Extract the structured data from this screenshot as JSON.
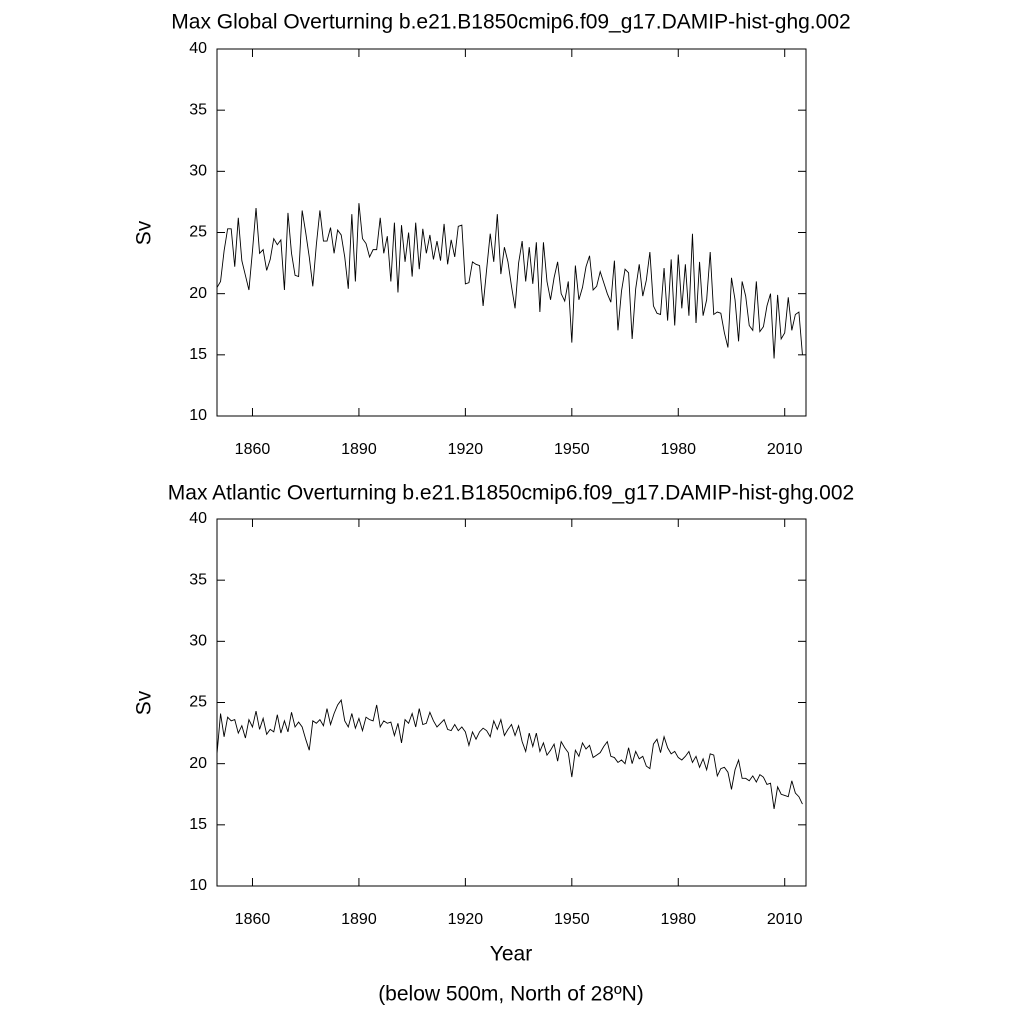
{
  "chart_data": [
    {
      "type": "line",
      "title": "Max Global Overturning b.e21.B1850cmip6.f09_g17.DAMIP-hist-ghg.002",
      "ylabel": "Sv",
      "color": "#000000",
      "xlim": [
        1850,
        2016
      ],
      "xticks": [
        1860,
        1890,
        1920,
        1950,
        1980,
        2010
      ],
      "ylim": [
        10,
        40
      ],
      "yticks": [
        10,
        15,
        20,
        25,
        30,
        35,
        40
      ],
      "x": [
        1850,
        1851,
        1852,
        1853,
        1854,
        1855,
        1856,
        1857,
        1858,
        1859,
        1860,
        1861,
        1862,
        1863,
        1864,
        1865,
        1866,
        1867,
        1868,
        1869,
        1870,
        1871,
        1872,
        1873,
        1874,
        1875,
        1876,
        1877,
        1878,
        1879,
        1880,
        1881,
        1882,
        1883,
        1884,
        1885,
        1886,
        1887,
        1888,
        1889,
        1890,
        1891,
        1892,
        1893,
        1894,
        1895,
        1896,
        1897,
        1898,
        1899,
        1900,
        1901,
        1902,
        1903,
        1904,
        1905,
        1906,
        1907,
        1908,
        1909,
        1910,
        1911,
        1912,
        1913,
        1914,
        1915,
        1916,
        1917,
        1918,
        1919,
        1920,
        1921,
        1922,
        1923,
        1924,
        1925,
        1926,
        1927,
        1928,
        1929,
        1930,
        1931,
        1932,
        1933,
        1934,
        1935,
        1936,
        1937,
        1938,
        1939,
        1940,
        1941,
        1942,
        1943,
        1944,
        1945,
        1946,
        1947,
        1948,
        1949,
        1950,
        1951,
        1952,
        1953,
        1954,
        1955,
        1956,
        1957,
        1958,
        1959,
        1960,
        1961,
        1962,
        1963,
        1964,
        1965,
        1966,
        1967,
        1968,
        1969,
        1970,
        1971,
        1972,
        1973,
        1974,
        1975,
        1976,
        1977,
        1978,
        1979,
        1980,
        1981,
        1982,
        1983,
        1984,
        1985,
        1986,
        1987,
        1988,
        1989,
        1990,
        1991,
        1992,
        1993,
        1994,
        1995,
        1996,
        1997,
        1998,
        1999,
        2000,
        2001,
        2002,
        2003,
        2004,
        2005,
        2006,
        2007,
        2008,
        2009,
        2010,
        2011,
        2012,
        2013,
        2014,
        2015
      ],
      "values": [
        20.5,
        21,
        23.5,
        25.3,
        25.3,
        22.2,
        26.2,
        22.7,
        21.5,
        20.3,
        23.5,
        27.0,
        23.3,
        23.6,
        21.9,
        22.8,
        24.5,
        24.0,
        24.4,
        20.3,
        26.6,
        23.3,
        21.5,
        21.4,
        26.8,
        25.0,
        23.0,
        20.6,
        24.0,
        26.8,
        24.3,
        24.3,
        25.4,
        23.3,
        25.2,
        24.8,
        23.0,
        20.4,
        26.5,
        21.0,
        27.4,
        24.5,
        24.1,
        23.0,
        23.6,
        23.6,
        26.2,
        23.3,
        24.7,
        21.0,
        25.8,
        20.1,
        25.6,
        22.6,
        25.0,
        21.4,
        25.8,
        22.0,
        25.3,
        23.3,
        24.8,
        22.8,
        24.3,
        22.7,
        25.7,
        22.4,
        24.4,
        23.0,
        25.5,
        25.6,
        20.8,
        20.9,
        22.6,
        22.4,
        22.3,
        19.0,
        22.0,
        24.9,
        22.6,
        26.5,
        21.6,
        23.8,
        22.6,
        20.6,
        18.8,
        22.5,
        24.3,
        21.0,
        23.8,
        20.8,
        24.2,
        18.5,
        24.2,
        21.0,
        19.5,
        21.3,
        22.6,
        20.0,
        19.4,
        21.0,
        16.0,
        22.3,
        19.5,
        20.5,
        22.2,
        23.1,
        20.3,
        20.6,
        21.8,
        20.9,
        20.0,
        19.3,
        22.7,
        17.0,
        20.2,
        22.0,
        21.7,
        16.3,
        20.4,
        22.4,
        19.8,
        21.1,
        23.4,
        19.0,
        18.4,
        18.3,
        22.1,
        17.8,
        22.8,
        17.4,
        23.2,
        18.8,
        22.4,
        18.2,
        24.9,
        17.6,
        22.6,
        18.2,
        19.5,
        23.4,
        18.3,
        18.5,
        18.4,
        16.8,
        15.6,
        21.3,
        19.5,
        16.1,
        21.0,
        19.8,
        17.4,
        17.0,
        21.0,
        16.9,
        17.3,
        19.0,
        20.0,
        14.7,
        19.9,
        16.3,
        16.8,
        19.7,
        17.0,
        18.3,
        18.5,
        15.0
      ]
    },
    {
      "type": "line",
      "title": "Max Atlantic Overturning b.e21.B1850cmip6.f09_g17.DAMIP-hist-ghg.002",
      "ylabel": "Sv",
      "xlabel": "Year",
      "note": "(below 500m, North of 28ºN)",
      "color": "#000000",
      "xlim": [
        1850,
        2016
      ],
      "xticks": [
        1860,
        1890,
        1920,
        1950,
        1980,
        2010
      ],
      "ylim": [
        10,
        40
      ],
      "yticks": [
        10,
        15,
        20,
        25,
        30,
        35,
        40
      ],
      "x": [
        1850,
        1851,
        1852,
        1853,
        1854,
        1855,
        1856,
        1857,
        1858,
        1859,
        1860,
        1861,
        1862,
        1863,
        1864,
        1865,
        1866,
        1867,
        1868,
        1869,
        1870,
        1871,
        1872,
        1873,
        1874,
        1875,
        1876,
        1877,
        1878,
        1879,
        1880,
        1881,
        1882,
        1883,
        1884,
        1885,
        1886,
        1887,
        1888,
        1889,
        1890,
        1891,
        1892,
        1893,
        1894,
        1895,
        1896,
        1897,
        1898,
        1899,
        1900,
        1901,
        1902,
        1903,
        1904,
        1905,
        1906,
        1907,
        1908,
        1909,
        1910,
        1911,
        1912,
        1913,
        1914,
        1915,
        1916,
        1917,
        1918,
        1919,
        1920,
        1921,
        1922,
        1923,
        1924,
        1925,
        1926,
        1927,
        1928,
        1929,
        1930,
        1931,
        1932,
        1933,
        1934,
        1935,
        1936,
        1937,
        1938,
        1939,
        1940,
        1941,
        1942,
        1943,
        1944,
        1945,
        1946,
        1947,
        1948,
        1949,
        1950,
        1951,
        1952,
        1953,
        1954,
        1955,
        1956,
        1957,
        1958,
        1959,
        1960,
        1961,
        1962,
        1963,
        1964,
        1965,
        1966,
        1967,
        1968,
        1969,
        1970,
        1971,
        1972,
        1973,
        1974,
        1975,
        1976,
        1977,
        1978,
        1979,
        1980,
        1981,
        1982,
        1983,
        1984,
        1985,
        1986,
        1987,
        1988,
        1989,
        1990,
        1991,
        1992,
        1993,
        1994,
        1995,
        1996,
        1997,
        1998,
        1999,
        2000,
        2001,
        2002,
        2003,
        2004,
        2005,
        2006,
        2007,
        2008,
        2009,
        2010,
        2011,
        2012,
        2013,
        2014,
        2015
      ],
      "values": [
        20.8,
        24.1,
        22.2,
        23.8,
        23.5,
        23.6,
        22.5,
        23.1,
        22.1,
        23.6,
        23.0,
        24.3,
        22.8,
        23.7,
        22.4,
        22.8,
        22.6,
        24.0,
        22.5,
        23.5,
        22.6,
        24.2,
        23.0,
        23.4,
        23.0,
        22.0,
        21.1,
        23.5,
        23.3,
        23.6,
        23.1,
        24.5,
        23.2,
        24.1,
        24.8,
        25.2,
        23.5,
        23.0,
        24.1,
        22.9,
        23.7,
        22.7,
        23.8,
        23.6,
        23.5,
        24.8,
        23.0,
        23.5,
        23.3,
        23.4,
        22.3,
        23.3,
        21.7,
        23.6,
        23.3,
        24.1,
        23.0,
        24.5,
        23.2,
        23.3,
        24.2,
        23.5,
        23.0,
        23.3,
        23.6,
        22.8,
        22.7,
        23.2,
        22.7,
        23.0,
        22.6,
        21.5,
        22.6,
        22.0,
        22.6,
        22.9,
        22.7,
        22.2,
        23.5,
        22.8,
        23.6,
        22.3,
        22.8,
        23.2,
        22.3,
        23.1,
        21.8,
        21.0,
        22.5,
        21.4,
        22.5,
        21.0,
        21.7,
        20.7,
        21.1,
        21.6,
        20.2,
        21.8,
        21.3,
        20.9,
        18.9,
        21.1,
        20.6,
        21.7,
        21.2,
        21.5,
        20.5,
        20.7,
        20.9,
        21.4,
        21.8,
        20.6,
        20.5,
        20.1,
        20.3,
        20.0,
        21.3,
        20.0,
        21.0,
        20.4,
        20.6,
        19.8,
        19.6,
        21.6,
        22.0,
        20.9,
        22.2,
        21.3,
        20.8,
        21.0,
        20.5,
        20.3,
        20.6,
        21.0,
        20.1,
        20.6,
        19.7,
        20.4,
        19.5,
        20.8,
        20.7,
        19.0,
        19.6,
        19.7,
        19.3,
        17.9,
        19.5,
        20.3,
        18.8,
        18.8,
        18.6,
        19.0,
        18.5,
        19.1,
        18.9,
        18.3,
        18.4,
        16.3,
        18.1,
        17.5,
        17.4,
        17.3,
        18.6,
        17.6,
        17.3,
        16.7
      ]
    }
  ]
}
